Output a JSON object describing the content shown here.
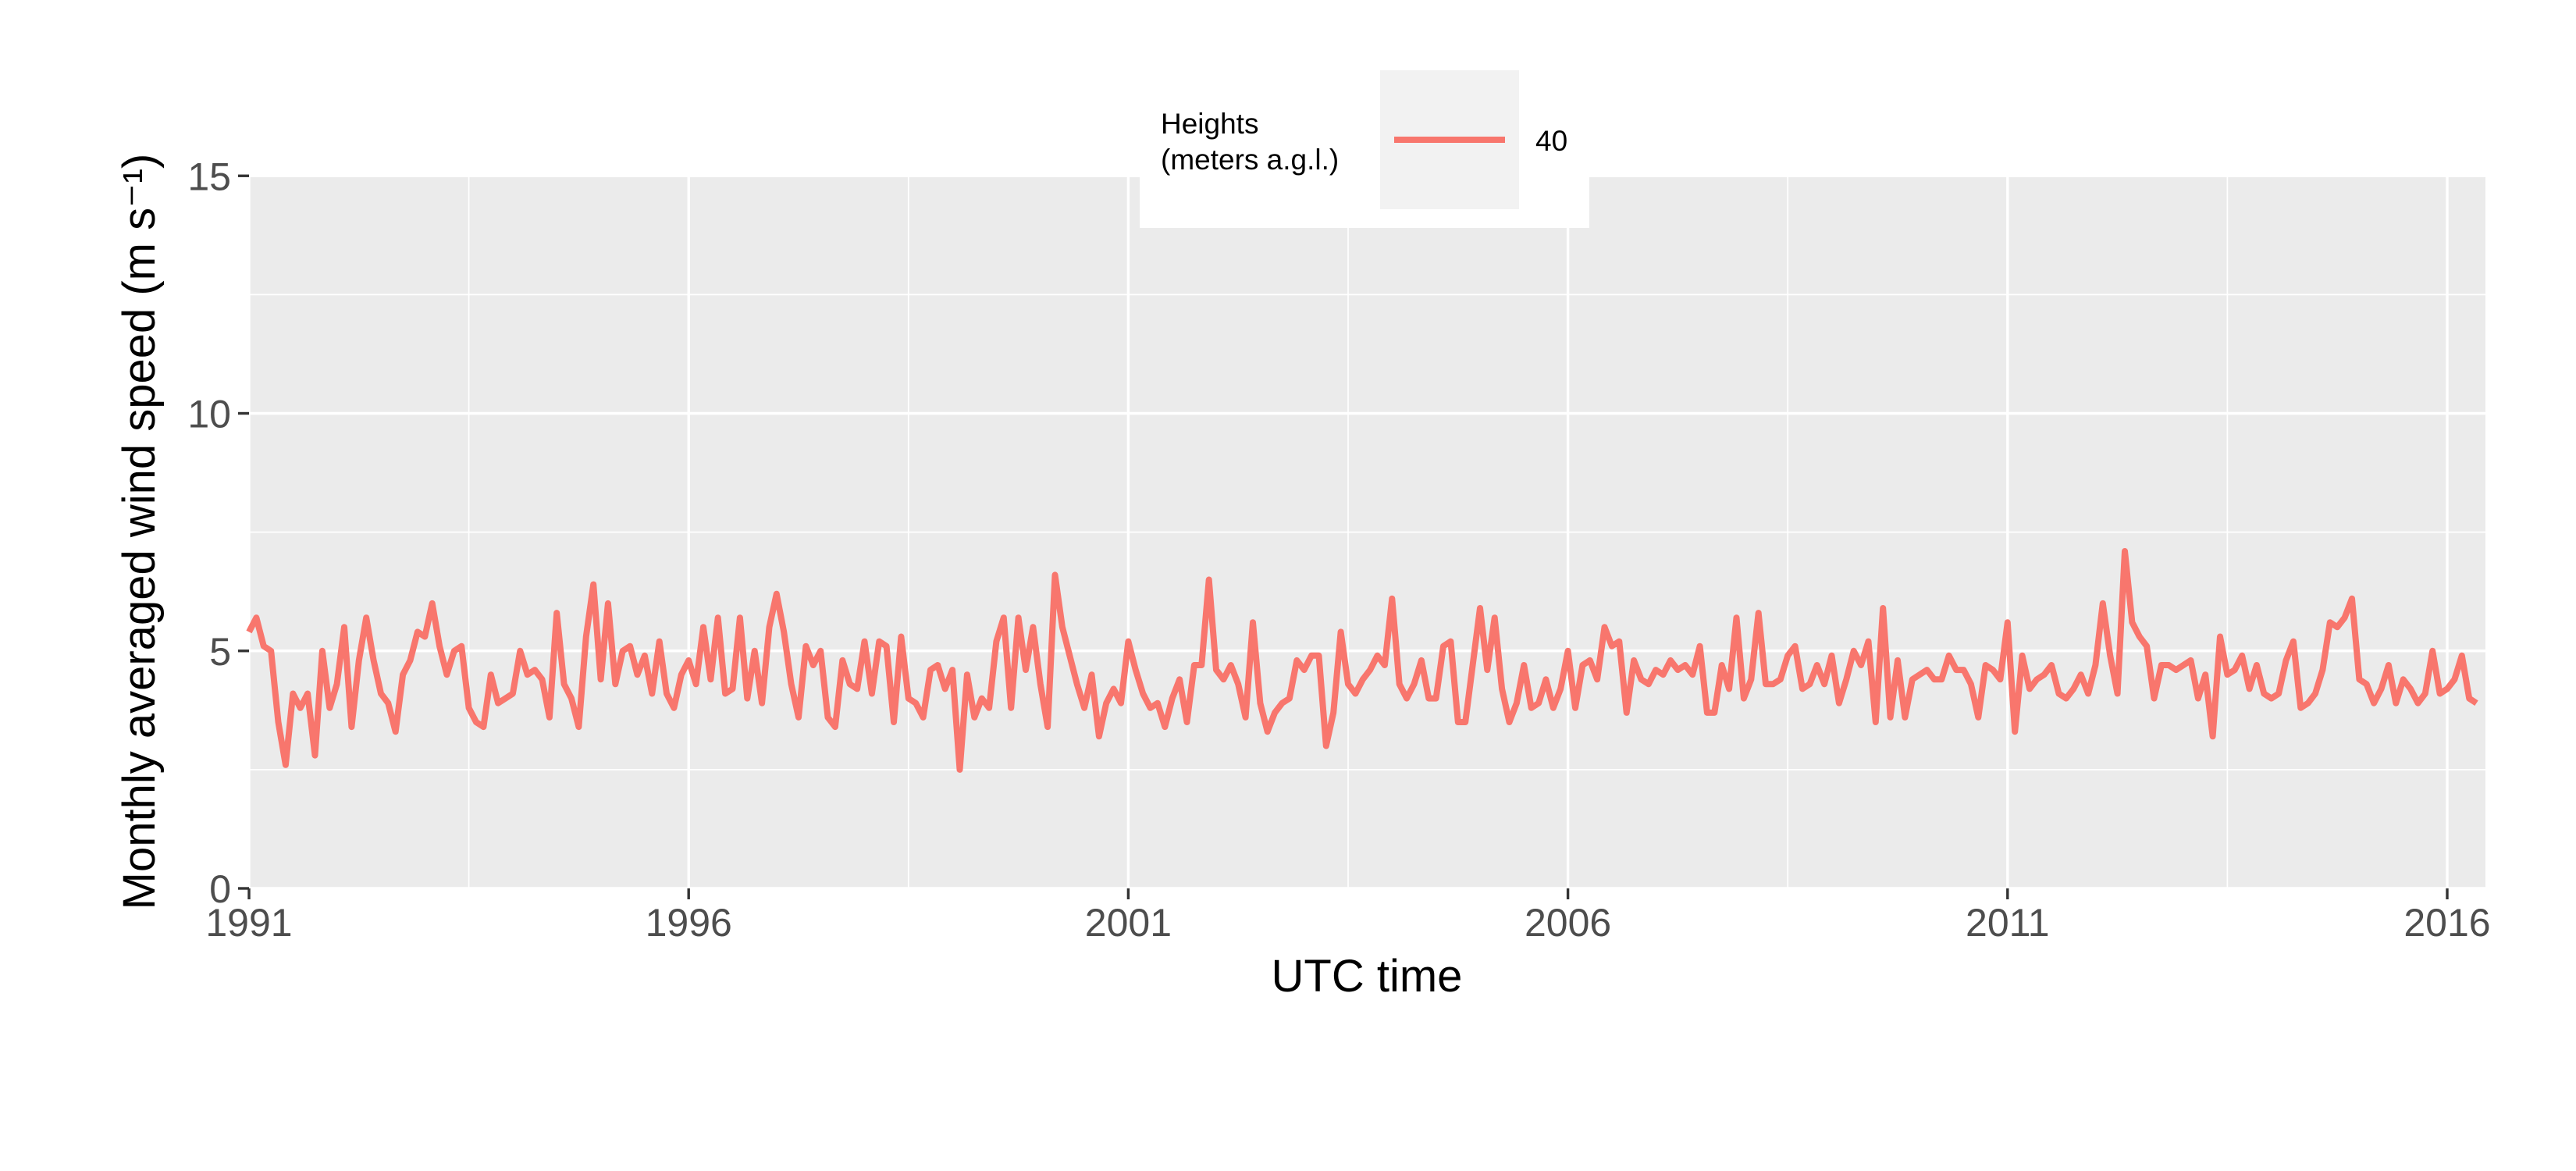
{
  "chart_data": {
    "type": "line",
    "title": "",
    "xlabel": "UTC time",
    "ylabel": "Monthly averaged wind speed (m s⁻¹)",
    "ylim": [
      0,
      15
    ],
    "x_tick_labels": [
      "1991",
      "1996",
      "2001",
      "2006",
      "2011",
      "2016"
    ],
    "y_tick_labels": [
      "0",
      "5",
      "10",
      "15"
    ],
    "grid": true,
    "legend": {
      "title_line1": "Heights",
      "title_line2": "(meters a.g.l.)",
      "placement": "top",
      "entries": [
        "40"
      ]
    },
    "series": [
      {
        "name": "40",
        "color": "#F8766D",
        "x_start": "1991-01",
        "x_end": "2016-05",
        "x_step": "month",
        "values": [
          5.4,
          5.7,
          5.1,
          5.0,
          3.5,
          2.6,
          4.1,
          3.8,
          4.1,
          2.8,
          5.0,
          3.8,
          4.3,
          5.5,
          3.4,
          4.8,
          5.7,
          4.8,
          4.1,
          3.9,
          3.3,
          4.5,
          4.8,
          5.4,
          5.3,
          6.0,
          5.1,
          4.5,
          5.0,
          5.1,
          3.8,
          3.5,
          3.4,
          4.5,
          3.9,
          4.0,
          4.1,
          5.0,
          4.5,
          4.6,
          4.4,
          3.6,
          5.8,
          4.3,
          4.0,
          3.4,
          5.3,
          6.4,
          4.4,
          6.0,
          4.3,
          5.0,
          5.1,
          4.5,
          4.9,
          4.1,
          5.2,
          4.1,
          3.8,
          4.5,
          4.8,
          4.3,
          5.5,
          4.4,
          5.7,
          4.1,
          4.2,
          5.7,
          4.0,
          5.0,
          3.9,
          5.5,
          6.2,
          5.4,
          4.3,
          3.6,
          5.1,
          4.7,
          5.0,
          3.6,
          3.4,
          4.8,
          4.3,
          4.2,
          5.2,
          4.1,
          5.2,
          5.1,
          3.5,
          5.3,
          4.0,
          3.9,
          3.6,
          4.6,
          4.7,
          4.2,
          4.6,
          2.5,
          4.5,
          3.6,
          4.0,
          3.8,
          5.2,
          5.7,
          3.8,
          5.7,
          4.6,
          5.5,
          4.3,
          3.4,
          6.6,
          5.5,
          4.9,
          4.3,
          3.8,
          4.5,
          3.2,
          3.9,
          4.2,
          3.9,
          5.2,
          4.6,
          4.1,
          3.8,
          3.9,
          3.4,
          4.0,
          4.4,
          3.5,
          4.7,
          4.7,
          6.5,
          4.6,
          4.4,
          4.7,
          4.3,
          3.6,
          5.6,
          3.9,
          3.3,
          3.7,
          3.9,
          4.0,
          4.8,
          4.6,
          4.9,
          4.9,
          3.0,
          3.7,
          5.4,
          4.3,
          4.1,
          4.4,
          4.6,
          4.9,
          4.7,
          6.1,
          4.3,
          4.0,
          4.3,
          4.8,
          4.0,
          4.0,
          5.1,
          5.2,
          3.5,
          3.5,
          4.7,
          5.9,
          4.6,
          5.7,
          4.2,
          3.5,
          3.9,
          4.7,
          3.8,
          3.9,
          4.4,
          3.8,
          4.2,
          5.0,
          3.8,
          4.7,
          4.8,
          4.4,
          5.5,
          5.1,
          5.2,
          3.7,
          4.8,
          4.4,
          4.3,
          4.6,
          4.5,
          4.8,
          4.6,
          4.7,
          4.5,
          5.1,
          3.7,
          3.7,
          4.7,
          4.2,
          5.7,
          4.0,
          4.4,
          5.8,
          4.3,
          4.3,
          4.4,
          4.9,
          5.1,
          4.2,
          4.3,
          4.7,
          4.3,
          4.9,
          3.9,
          4.4,
          5.0,
          4.7,
          5.2,
          3.5,
          5.9,
          3.6,
          4.8,
          3.6,
          4.4,
          4.5,
          4.6,
          4.4,
          4.4,
          4.9,
          4.6,
          4.6,
          4.3,
          3.6,
          4.7,
          4.6,
          4.4,
          5.6,
          3.3,
          4.9,
          4.2,
          4.4,
          4.5,
          4.7,
          4.1,
          4.0,
          4.2,
          4.5,
          4.1,
          4.7,
          6.0,
          4.9,
          4.1,
          7.1,
          5.6,
          5.3,
          5.1,
          4.0,
          4.7,
          4.7,
          4.6,
          4.7,
          4.8,
          4.0,
          4.5,
          3.2,
          5.3,
          4.5,
          4.6,
          4.9,
          4.2,
          4.7,
          4.1,
          4.0,
          4.1,
          4.8,
          5.2,
          3.8,
          3.9,
          4.1,
          4.6,
          5.6,
          5.5,
          5.7,
          6.1,
          4.4,
          4.3,
          3.9,
          4.2,
          4.7,
          3.9,
          4.4,
          4.2,
          3.9,
          4.1,
          5.0,
          4.1,
          4.2,
          4.4,
          4.9,
          4.0,
          3.9
        ]
      }
    ]
  }
}
